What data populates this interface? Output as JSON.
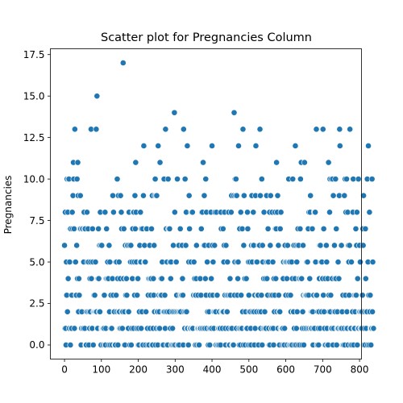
{
  "chart_data": {
    "type": "scatter",
    "title": "Scatter plot for Pregnancies Column",
    "xlabel": "",
    "ylabel": "Pregnancies",
    "xlim": [
      -38.35,
      805.35
    ],
    "ylim": [
      -0.85,
      17.85
    ],
    "xticks": [
      "0",
      "100",
      "200",
      "300",
      "400",
      "500",
      "600",
      "700",
      "800"
    ],
    "yticks": [
      "0.0",
      "2.5",
      "5.0",
      "7.5",
      "10.0",
      "12.5",
      "15.0",
      "17.5"
    ],
    "marker_color": "#1f77b4",
    "grid": false,
    "series_values": [
      6,
      1,
      8,
      1,
      0,
      5,
      3,
      10,
      2,
      8,
      4,
      10,
      10,
      1,
      5,
      7,
      0,
      7,
      1,
      1,
      3,
      8,
      7,
      9,
      11,
      10,
      7,
      1,
      13,
      5,
      5,
      3,
      3,
      6,
      10,
      4,
      11,
      9,
      2,
      4,
      3,
      7,
      7,
      9,
      7,
      0,
      1,
      2,
      7,
      7,
      1,
      1,
      5,
      8,
      7,
      1,
      7,
      0,
      0,
      0,
      2,
      8,
      5,
      2,
      7,
      5,
      0,
      2,
      1,
      4,
      2,
      5,
      13,
      4,
      1,
      1,
      7,
      5,
      0,
      2,
      3,
      2,
      3,
      2,
      5,
      2,
      13,
      2,
      15,
      1,
      1,
      4,
      7,
      4,
      2,
      6,
      2,
      8,
      6,
      0,
      1,
      6,
      1,
      1,
      1,
      0,
      1,
      1,
      3,
      0,
      8,
      0,
      1,
      4,
      7,
      4,
      5,
      5,
      4,
      4,
      0,
      6,
      2,
      5,
      0,
      1,
      3,
      1,
      1,
      0,
      4,
      9,
      3,
      8,
      2,
      2,
      0,
      0,
      0,
      5,
      3,
      5,
      2,
      10,
      4,
      0,
      9,
      2,
      5,
      2,
      1,
      4,
      9,
      1,
      8,
      7,
      2,
      1,
      2,
      17,
      4,
      7,
      0,
      2,
      0,
      6,
      3,
      4,
      4,
      3,
      6,
      6,
      2,
      1,
      2,
      8,
      6,
      0,
      5,
      5,
      6,
      0,
      1,
      5,
      4,
      7,
      8,
      1,
      8,
      5,
      3,
      9,
      7,
      11,
      8,
      5,
      1,
      3,
      4,
      4,
      0,
      1,
      0,
      2,
      6,
      5,
      8,
      5,
      1,
      7,
      2,
      0,
      7,
      0,
      9,
      12,
      5,
      6,
      5,
      5,
      0,
      2,
      7,
      7,
      1,
      1,
      0,
      3,
      4,
      0,
      4,
      6,
      1,
      4,
      3,
      4,
      7,
      0,
      9,
      0,
      1,
      4,
      3,
      6,
      2,
      9,
      10,
      0,
      9,
      1,
      9,
      2,
      2,
      0,
      12,
      1,
      3,
      2,
      1,
      11,
      3,
      3,
      4,
      3,
      4,
      5,
      0,
      2,
      0,
      2,
      10,
      2,
      3,
      1,
      13,
      2,
      7,
      0,
      5,
      2,
      0,
      10,
      7,
      7,
      2,
      7,
      5,
      1,
      4,
      5,
      0,
      0,
      2,
      1,
      0,
      6,
      2,
      0,
      14,
      8,
      0,
      2,
      5,
      5,
      3,
      2,
      10,
      0,
      0,
      2,
      6,
      0,
      2,
      3,
      7,
      2,
      3,
      3,
      3,
      6,
      4,
      3,
      0,
      13,
      2,
      1,
      1,
      10,
      2,
      6,
      8,
      2,
      1,
      12,
      1,
      0,
      0,
      5,
      9,
      7,
      1,
      1,
      1,
      5,
      8,
      8,
      1,
      8,
      1,
      3,
      3,
      5,
      4,
      4,
      3,
      0,
      3,
      4,
      6,
      0,
      1,
      1,
      3,
      1,
      0,
      0,
      1,
      1,
      4,
      1,
      3,
      7,
      8,
      1,
      8,
      11,
      11,
      1,
      6,
      9,
      6,
      1,
      4,
      10,
      3,
      8,
      1,
      5,
      2,
      0,
      0,
      6,
      2,
      1,
      0,
      3,
      1,
      8,
      4,
      1,
      12,
      6,
      3,
      5,
      2,
      1,
      2,
      6,
      8,
      2,
      2,
      0,
      8,
      3,
      3,
      0,
      0,
      1,
      1,
      0,
      2,
      1,
      1,
      0,
      8,
      7,
      2,
      2,
      1,
      2,
      7,
      2,
      5,
      6,
      8,
      3,
      1,
      0,
      6,
      2,
      3,
      2,
      5,
      3,
      1,
      8,
      0,
      3,
      0,
      4,
      3,
      1,
      8,
      9,
      1,
      0,
      0,
      0,
      0,
      9,
      14,
      3,
      5,
      10,
      9,
      10,
      1,
      9,
      5,
      3,
      4,
      5,
      12,
      1,
      0,
      7,
      1,
      0,
      8,
      3,
      1,
      1,
      7,
      2,
      13,
      0,
      6,
      9,
      4,
      4,
      0,
      2,
      1,
      4,
      1,
      1,
      8,
      7,
      0,
      5,
      3,
      2,
      0,
      5,
      2,
      1,
      0,
      6,
      9,
      5,
      2,
      6,
      8,
      6,
      2,
      0,
      3,
      1,
      9,
      12,
      5,
      2,
      5,
      3,
      3,
      3,
      0,
      6,
      2,
      6,
      13,
      9,
      1,
      2,
      3,
      10,
      0,
      6,
      5,
      1,
      4,
      8,
      1,
      2,
      4,
      1,
      1,
      5,
      9,
      4,
      5,
      3,
      7,
      5,
      1,
      0,
      8,
      0,
      6,
      9,
      3,
      1,
      1,
      8,
      3,
      5,
      1,
      0,
      4,
      2,
      3,
      8,
      7,
      4,
      7,
      11,
      2,
      8,
      9,
      1,
      6,
      3,
      2,
      0,
      2,
      7,
      1,
      8,
      1,
      1,
      1,
      0,
      1,
      4,
      5,
      0,
      0,
      1,
      6,
      5,
      3,
      5,
      5,
      4,
      0,
      6,
      5,
      3,
      10,
      5,
      0,
      5,
      0,
      3,
      2,
      0,
      5,
      0,
      4,
      10,
      2,
      2,
      6,
      1,
      0,
      4,
      12,
      6,
      0,
      1,
      5,
      2,
      6,
      7,
      0,
      6,
      4,
      4,
      0,
      7,
      10,
      4,
      11,
      4,
      0,
      1,
      2,
      6,
      3,
      0,
      1,
      11,
      3,
      3,
      3,
      1,
      3,
      5,
      3,
      5,
      1,
      7,
      3,
      8,
      1,
      4,
      8,
      9,
      1,
      2,
      1,
      2,
      7,
      2,
      0,
      1,
      3,
      8,
      1,
      8,
      8,
      5,
      3,
      13,
      3,
      0,
      0,
      2,
      1,
      0,
      2,
      4,
      6,
      1,
      6,
      5,
      5,
      2,
      5,
      4,
      4,
      13,
      3,
      7,
      2,
      1,
      0,
      4,
      0,
      6,
      6,
      5,
      1,
      0,
      4,
      0,
      11,
      3,
      2,
      8,
      10,
      2,
      3,
      1,
      10,
      1,
      4,
      10,
      0,
      9,
      1,
      2,
      6,
      4,
      2,
      10,
      4,
      7,
      0,
      1,
      2,
      1,
      5,
      1,
      4,
      9,
      13,
      12,
      1,
      1,
      6,
      6,
      1,
      2,
      0,
      3,
      0,
      0,
      1,
      9,
      0,
      10,
      3,
      8,
      1,
      10,
      2,
      1,
      8,
      0,
      6,
      5,
      3,
      6,
      13,
      1,
      0,
      1,
      5,
      0,
      2,
      2,
      8,
      10,
      0,
      1,
      3,
      1,
      2,
      3,
      7,
      3,
      6,
      8,
      0,
      4,
      1,
      10,
      1,
      2,
      6,
      2,
      5,
      1,
      2,
      1,
      1,
      2,
      3,
      7,
      6,
      9,
      0,
      1,
      2,
      0,
      7,
      4,
      1,
      2,
      2,
      10,
      0,
      5,
      12,
      3,
      0,
      8,
      2,
      3,
      1,
      0,
      1,
      1,
      10,
      2,
      5,
      1,
      1
    ]
  }
}
